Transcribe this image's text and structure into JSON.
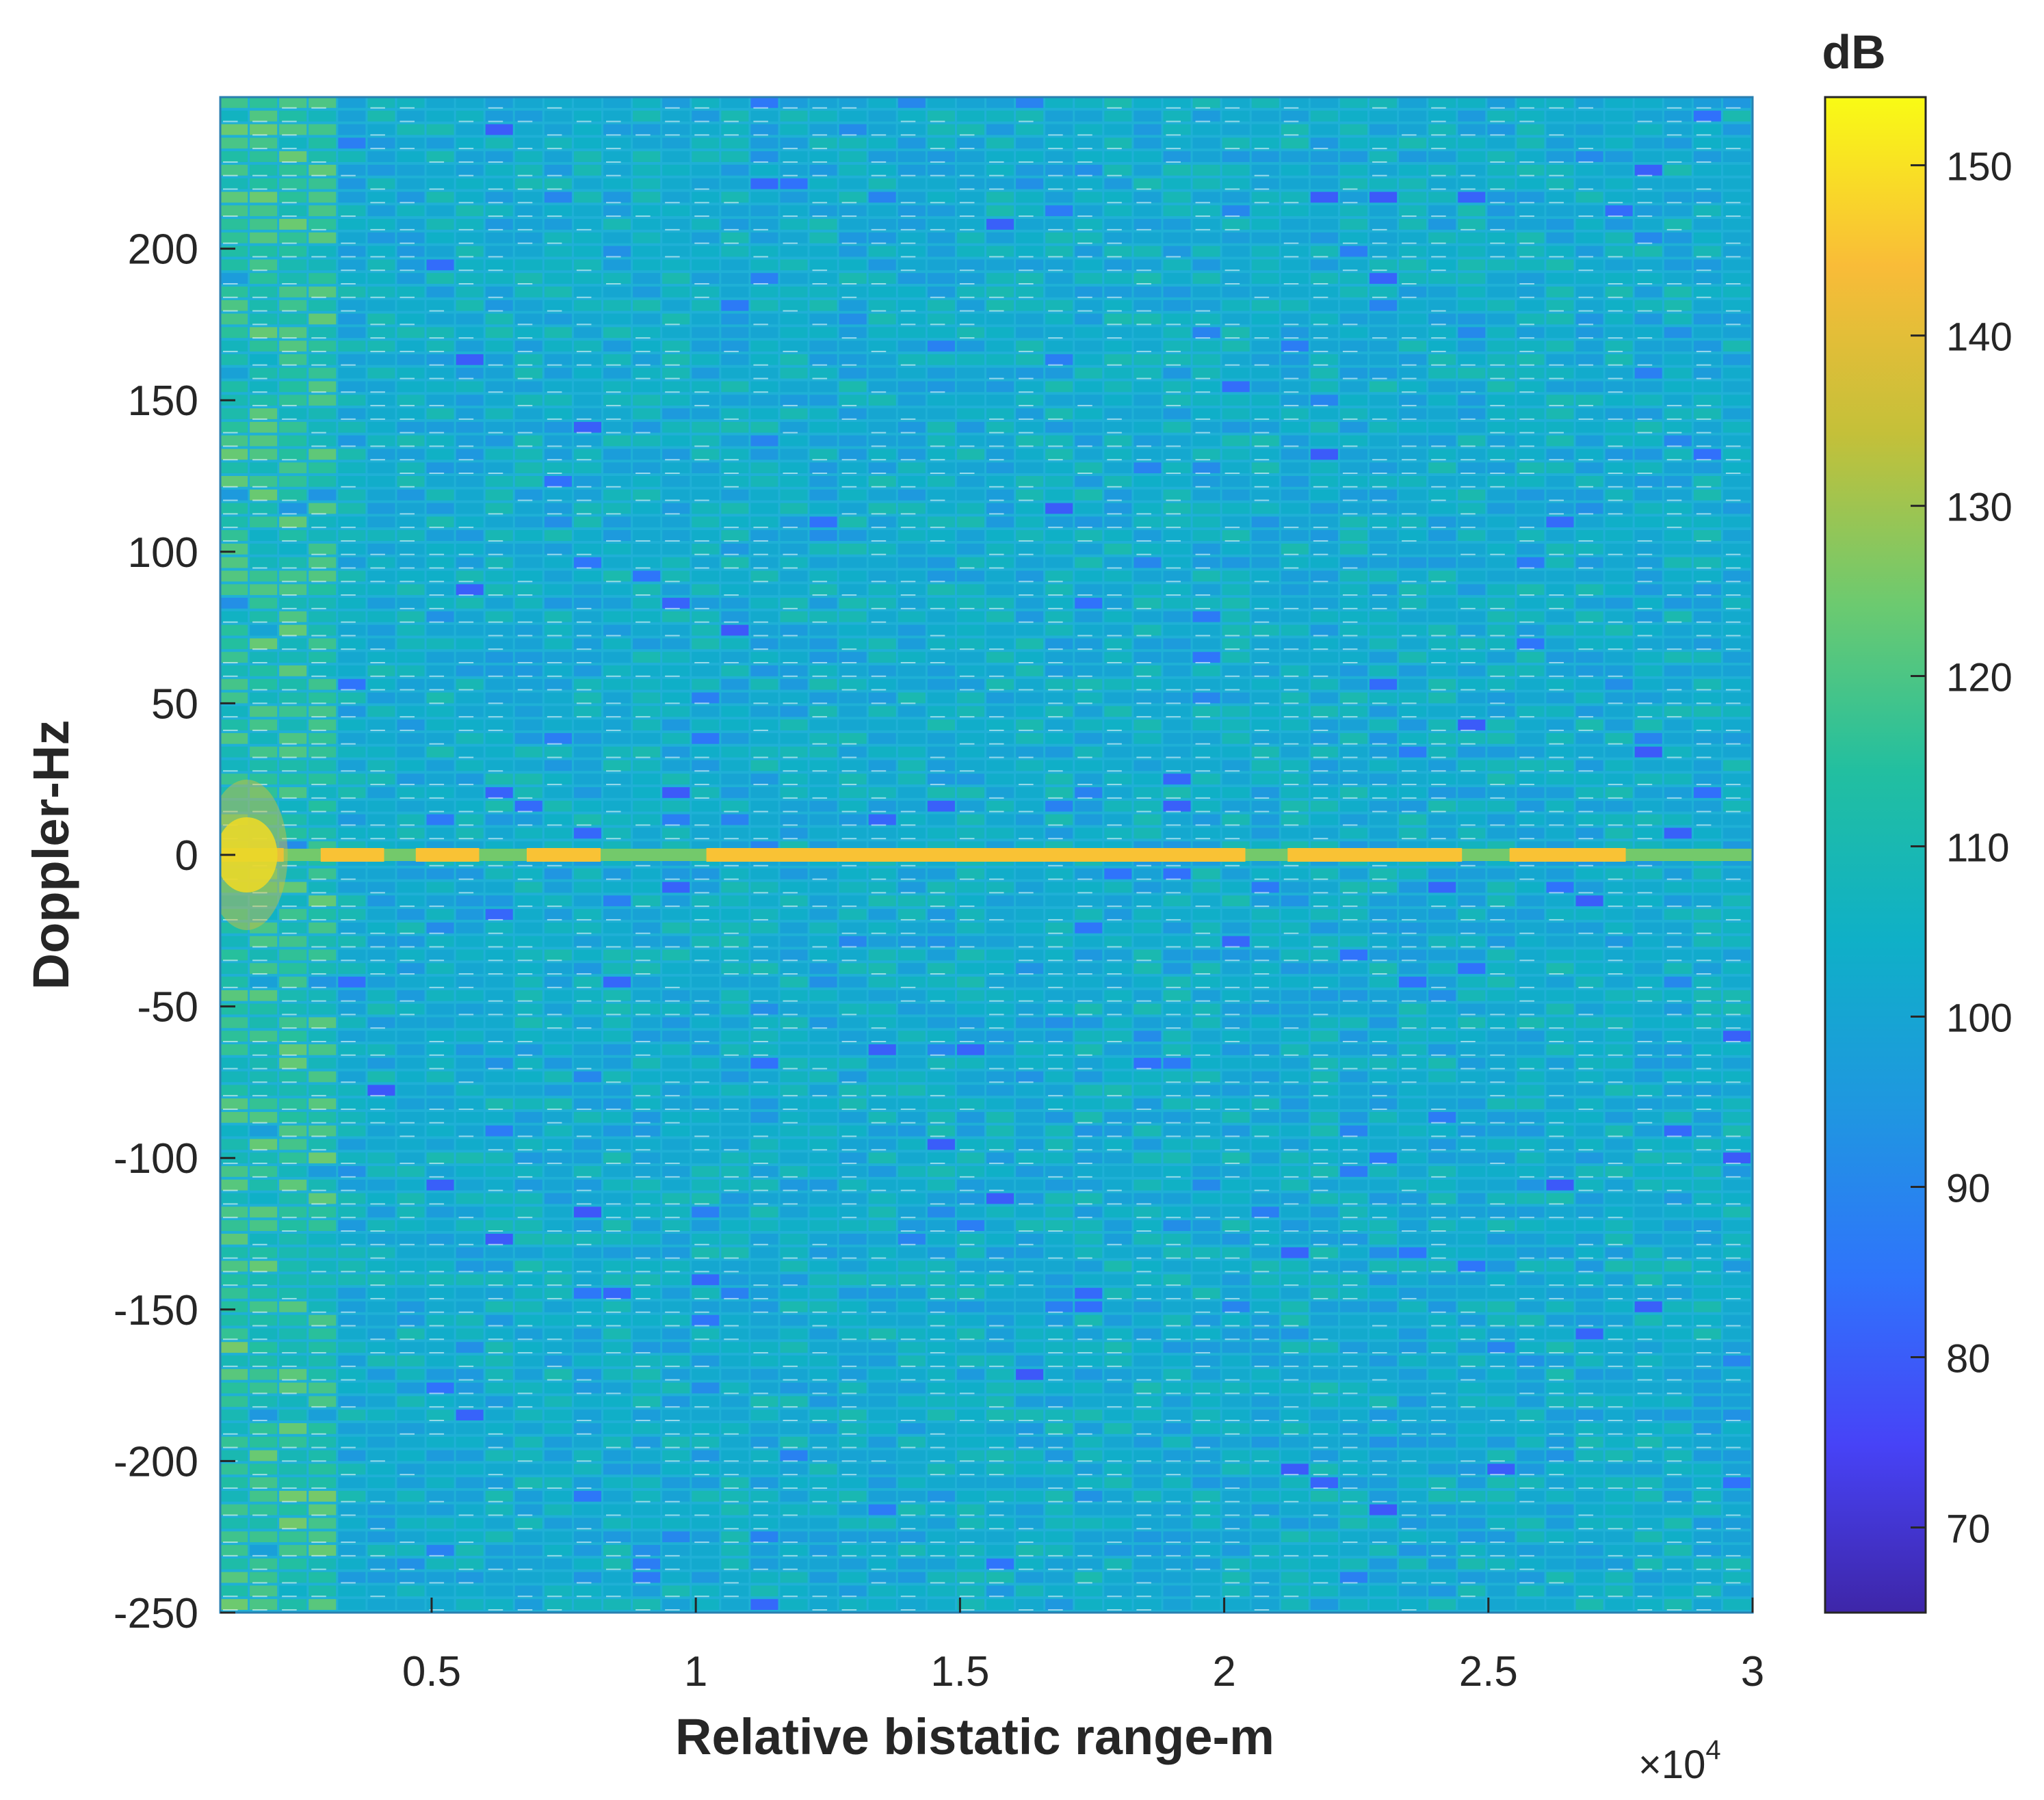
{
  "chart_data": {
    "type": "heatmap",
    "title": "",
    "xlabel": "Relative bistatic range-m",
    "ylabel": "Doppler-Hz",
    "x_multiplier_label": "×10",
    "x_multiplier_exponent": "4",
    "xlim": [
      0.1,
      3.0
    ],
    "ylim": [
      -250,
      250
    ],
    "x_ticks": [
      0.5,
      1,
      1.5,
      2,
      2.5,
      3
    ],
    "x_tick_labels": [
      "0.5",
      "1",
      "1.5",
      "2",
      "2.5",
      "3"
    ],
    "y_ticks": [
      200,
      150,
      100,
      50,
      0,
      -50,
      -100,
      -150,
      -200,
      -250
    ],
    "y_tick_labels": [
      "200",
      "150",
      "100",
      "50",
      "0",
      "-50",
      "-100",
      "-150",
      "-200",
      "-250"
    ],
    "colorbar": {
      "label": "dB",
      "range": [
        65,
        154
      ],
      "ticks": [
        150,
        140,
        130,
        120,
        110,
        100,
        90,
        80,
        70
      ],
      "tick_labels": [
        "150",
        "140",
        "130",
        "120",
        "110",
        "100",
        "90",
        "80",
        "70"
      ],
      "colormap": [
        "#3e26a8",
        "#4743f7",
        "#2f74fb",
        "#1f97e0",
        "#0fb0c7",
        "#22bfa0",
        "#6dca6f",
        "#c4c039",
        "#f9bc38",
        "#f9fb15"
      ]
    },
    "background_level_db": 103,
    "zero_doppler_strip": {
      "doppler_hz": 0,
      "high_segments_x1e4": [
        [
          0.1,
          0.22
        ],
        [
          0.29,
          0.41
        ],
        [
          0.47,
          0.59
        ],
        [
          0.68,
          0.82
        ],
        [
          1.02,
          2.04
        ],
        [
          2.12,
          2.45
        ],
        [
          2.54,
          2.76
        ]
      ],
      "high_level_db": 145,
      "low_level_db": 125,
      "near_range_peak": {
        "x_x1e4": 0.15,
        "doppler_hz": 0,
        "level_db": 152
      }
    },
    "near_range_band": {
      "x_range_x1e4": [
        0.1,
        0.3
      ],
      "level_db": 118
    }
  }
}
